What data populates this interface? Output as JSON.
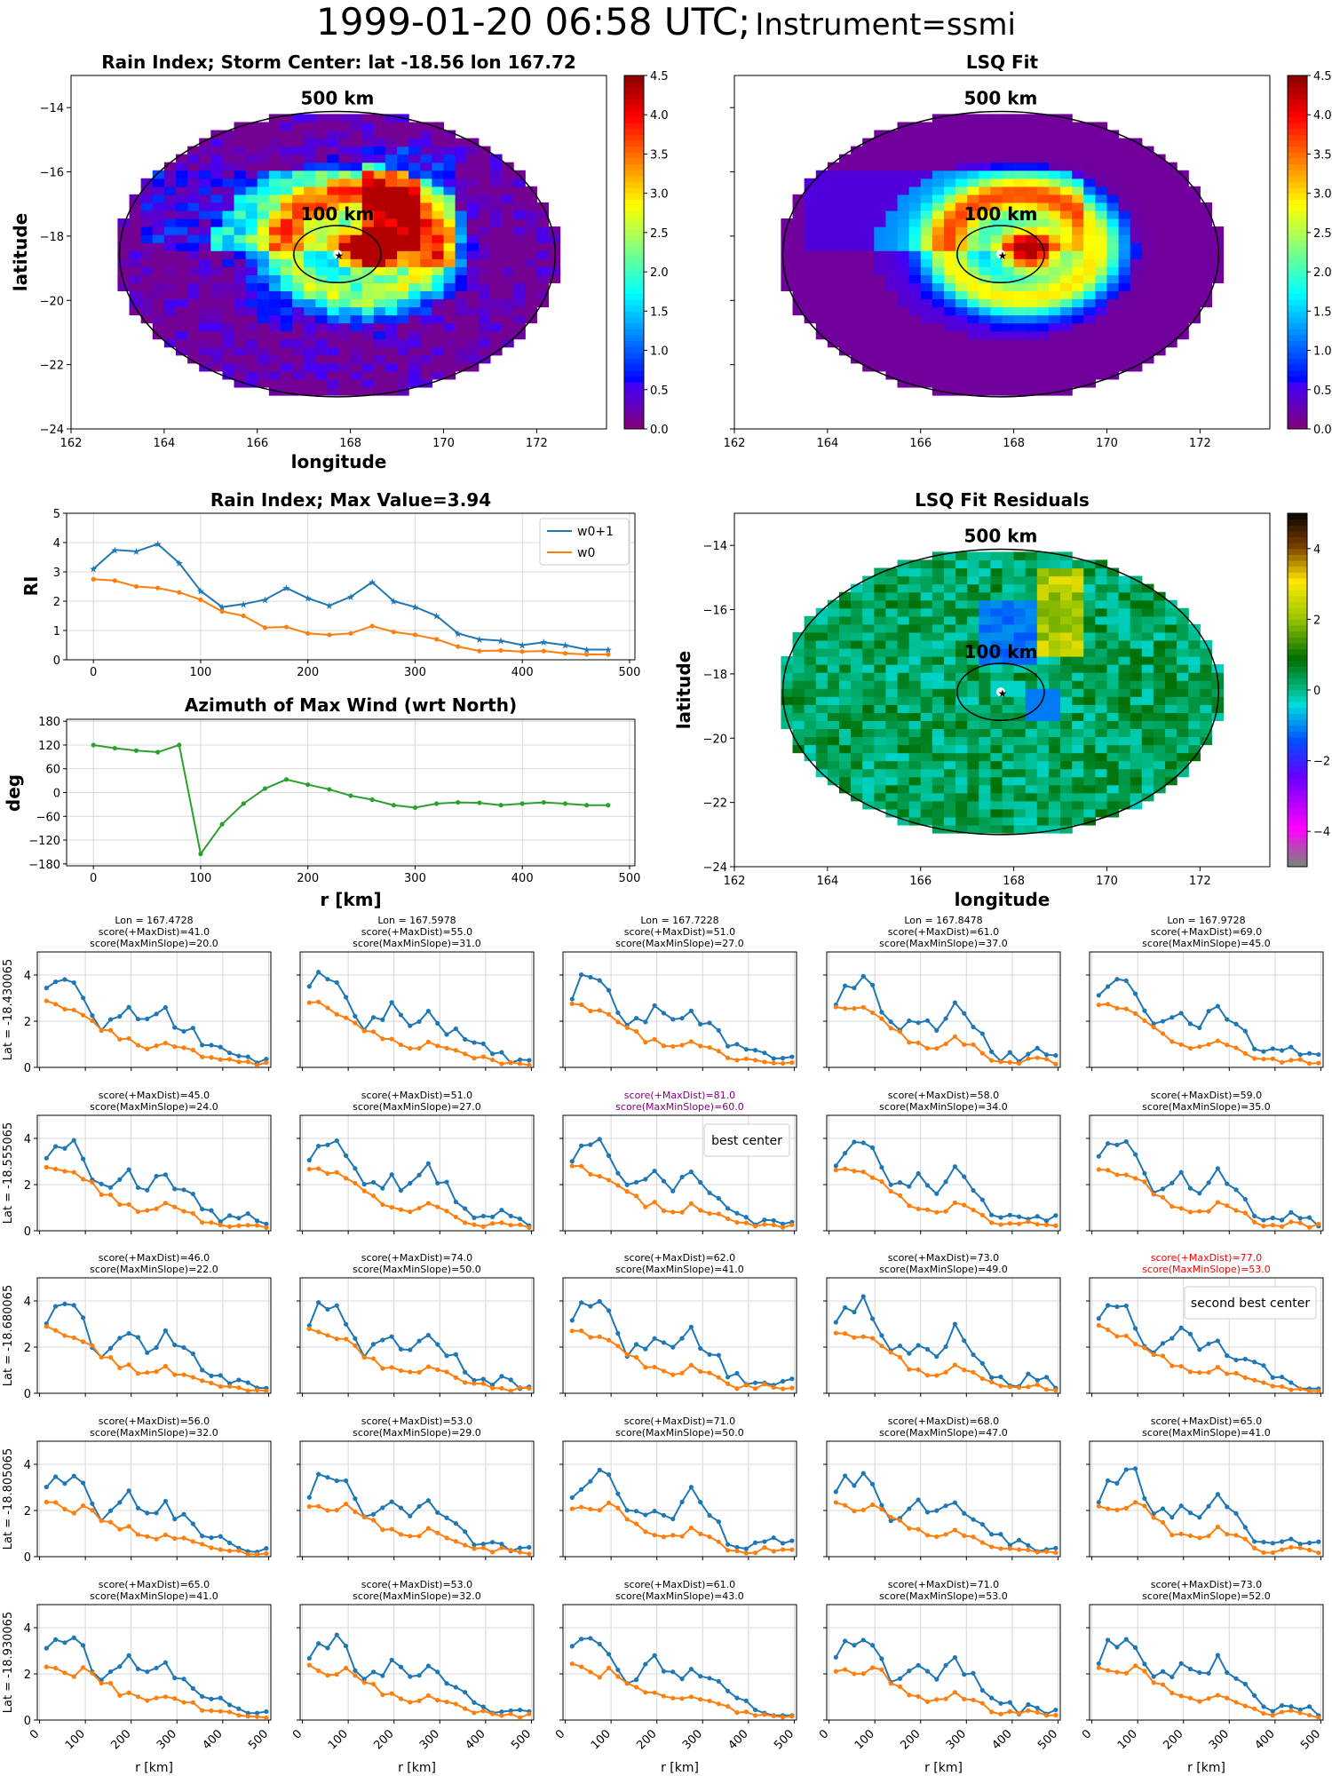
{
  "suptitle": {
    "main": "1999-01-20 06:58 UTC;",
    "instrument": "Instrument=ssmi"
  },
  "colors": {
    "w0p1": "#1f77b4",
    "w0": "#ff7f0e",
    "az": "#2ca02c",
    "best": "#800080",
    "second": "#ff0000"
  },
  "maps": [
    {
      "title": "Rain Index; Storm Center: lat -18.56 lon 167.72",
      "xlabel": "longitude",
      "ylabel": "latitude",
      "xticks": [
        "162",
        "164",
        "166",
        "168",
        "170",
        "172"
      ],
      "yticks": [
        "−14",
        "−16",
        "−18",
        "−20",
        "−22",
        "−24"
      ],
      "ring500": "500 km",
      "ring100": "100 km",
      "cbar_ticks": [
        "0.0",
        "0.5",
        "1.0",
        "1.5",
        "2.0",
        "2.5",
        "3.0",
        "3.5",
        "4.0",
        "4.5"
      ],
      "colormap": "jet",
      "vmin": 0,
      "vmax": 4.5
    },
    {
      "title": "LSQ Fit",
      "xlabel": "",
      "ylabel": "",
      "xticks": [
        "162",
        "164",
        "166",
        "168",
        "170",
        "172"
      ],
      "yticks": [],
      "ring500": "500 km",
      "ring100": "100 km",
      "cbar_ticks": [
        "0.0",
        "0.5",
        "1.0",
        "1.5",
        "2.0",
        "2.5",
        "3.0",
        "3.5",
        "4.0",
        "4.5"
      ],
      "colormap": "jet",
      "vmin": 0,
      "vmax": 4.5
    },
    {
      "title": "LSQ Fit Residuals",
      "xlabel": "longitude",
      "ylabel": "latitude",
      "xticks": [
        "162",
        "164",
        "166",
        "168",
        "170",
        "172"
      ],
      "yticks": [
        "−14",
        "−16",
        "−18",
        "−20",
        "−22",
        "−24"
      ],
      "ring500": "500 km",
      "ring100": "100 km",
      "cbar_ticks": [
        "4",
        "2",
        "0",
        "−2",
        "−4"
      ],
      "colormap": "diverging",
      "vmin": -5,
      "vmax": 5
    }
  ],
  "chart_data": [
    {
      "type": "line",
      "title": "Rain Index; Max Value=3.94",
      "xlabel": "",
      "ylabel": "RI",
      "xlim": [
        -25,
        505
      ],
      "ylim": [
        0,
        5
      ],
      "xticks": [
        "0",
        "100",
        "200",
        "300",
        "400",
        "500"
      ],
      "yticks": [
        "0",
        "1",
        "2",
        "3",
        "4",
        "5"
      ],
      "legend": "top-right",
      "x": [
        0,
        20,
        40,
        60,
        80,
        100,
        120,
        140,
        160,
        180,
        200,
        220,
        240,
        260,
        280,
        300,
        320,
        340,
        360,
        380,
        400,
        420,
        440,
        460,
        480
      ],
      "series": [
        {
          "name": "w0+1",
          "values": [
            3.1,
            3.75,
            3.7,
            3.95,
            3.3,
            2.35,
            1.8,
            1.9,
            2.05,
            2.45,
            2.1,
            1.85,
            2.15,
            2.65,
            2.0,
            1.8,
            1.5,
            0.9,
            0.7,
            0.65,
            0.5,
            0.6,
            0.5,
            0.35,
            0.35
          ]
        },
        {
          "name": "w0",
          "values": [
            2.75,
            2.7,
            2.5,
            2.45,
            2.3,
            2.05,
            1.65,
            1.5,
            1.1,
            1.12,
            0.9,
            0.85,
            0.9,
            1.15,
            0.95,
            0.85,
            0.7,
            0.45,
            0.3,
            0.32,
            0.28,
            0.3,
            0.22,
            0.18,
            0.18
          ]
        }
      ]
    },
    {
      "type": "line",
      "title": "Azimuth of Max Wind (wrt North)",
      "xlabel": "r [km]",
      "ylabel": "deg",
      "xlim": [
        -25,
        505
      ],
      "ylim": [
        -185,
        185
      ],
      "xticks": [
        "0",
        "100",
        "200",
        "300",
        "400",
        "500"
      ],
      "yticks": [
        "180",
        "120",
        "60",
        "0",
        "−60",
        "−120",
        "−180"
      ],
      "x": [
        0,
        20,
        40,
        60,
        80,
        100,
        120,
        140,
        160,
        180,
        200,
        220,
        240,
        260,
        280,
        300,
        320,
        340,
        360,
        380,
        400,
        420,
        440,
        460,
        480
      ],
      "series": [
        {
          "values": [
            120,
            112,
            106,
            102,
            120,
            -155,
            -80,
            -28,
            10,
            33,
            20,
            8,
            -8,
            -18,
            -32,
            -38,
            -28,
            -25,
            -26,
            -32,
            -28,
            -25,
            -28,
            -32,
            -32
          ]
        }
      ]
    },
    {
      "type": "line",
      "grid_rows": 5,
      "grid_cols": 5,
      "xlabel": "r [km]",
      "xlim": [
        -5,
        505
      ],
      "ylim": [
        0,
        5
      ],
      "xticks": [
        "0",
        "100",
        "200",
        "300",
        "400",
        "500"
      ],
      "yticks": [
        "0",
        "2",
        "4"
      ],
      "col_lons": [
        "Lon = 167.4728",
        "Lon = 167.5978",
        "Lon = 167.7228",
        "Lon = 167.8478",
        "Lon = 167.9728"
      ],
      "row_lats": [
        "Lat = -18.430065",
        "Lat = -18.555065",
        "Lat = -18.680065",
        "Lat = -18.805065",
        "Lat = -18.930065"
      ],
      "panels": [
        {
          "s1": "score(+MaxDist)=41.0",
          "s2": "score(MaxMinSlope)=20.0"
        },
        {
          "s1": "score(+MaxDist)=55.0",
          "s2": "score(MaxMinSlope)=31.0"
        },
        {
          "s1": "score(+MaxDist)=51.0",
          "s2": "score(MaxMinSlope)=27.0"
        },
        {
          "s1": "score(+MaxDist)=61.0",
          "s2": "score(MaxMinSlope)=37.0"
        },
        {
          "s1": "score(+MaxDist)=69.0",
          "s2": "score(MaxMinSlope)=45.0"
        },
        {
          "s1": "score(+MaxDist)=45.0",
          "s2": "score(MaxMinSlope)=24.0"
        },
        {
          "s1": "score(+MaxDist)=51.0",
          "s2": "score(MaxMinSlope)=27.0"
        },
        {
          "s1": "score(+MaxDist)=81.0",
          "s2": "score(MaxMinSlope)=60.0",
          "mark": "best",
          "label": "best center"
        },
        {
          "s1": "score(+MaxDist)=58.0",
          "s2": "score(MaxMinSlope)=34.0"
        },
        {
          "s1": "score(+MaxDist)=59.0",
          "s2": "score(MaxMinSlope)=35.0"
        },
        {
          "s1": "score(+MaxDist)=46.0",
          "s2": "score(MaxMinSlope)=22.0"
        },
        {
          "s1": "score(+MaxDist)=74.0",
          "s2": "score(MaxMinSlope)=50.0"
        },
        {
          "s1": "score(+MaxDist)=62.0",
          "s2": "score(MaxMinSlope)=41.0"
        },
        {
          "s1": "score(+MaxDist)=73.0",
          "s2": "score(MaxMinSlope)=49.0"
        },
        {
          "s1": "score(+MaxDist)=77.0",
          "s2": "score(MaxMinSlope)=53.0",
          "mark": "second",
          "label": "second best center"
        },
        {
          "s1": "score(+MaxDist)=56.0",
          "s2": "score(MaxMinSlope)=32.0"
        },
        {
          "s1": "score(+MaxDist)=53.0",
          "s2": "score(MaxMinSlope)=29.0"
        },
        {
          "s1": "score(+MaxDist)=71.0",
          "s2": "score(MaxMinSlope)=50.0"
        },
        {
          "s1": "score(+MaxDist)=68.0",
          "s2": "score(MaxMinSlope)=47.0"
        },
        {
          "s1": "score(+MaxDist)=65.0",
          "s2": "score(MaxMinSlope)=41.0"
        },
        {
          "s1": "score(+MaxDist)=65.0",
          "s2": "score(MaxMinSlope)=41.0"
        },
        {
          "s1": "score(+MaxDist)=53.0",
          "s2": "score(MaxMinSlope)=32.0"
        },
        {
          "s1": "score(+MaxDist)=61.0",
          "s2": "score(MaxMinSlope)=43.0"
        },
        {
          "s1": "score(+MaxDist)=71.0",
          "s2": "score(MaxMinSlope)=53.0"
        },
        {
          "s1": "score(+MaxDist)=73.0",
          "s2": "score(MaxMinSlope)=52.0"
        }
      ]
    }
  ]
}
